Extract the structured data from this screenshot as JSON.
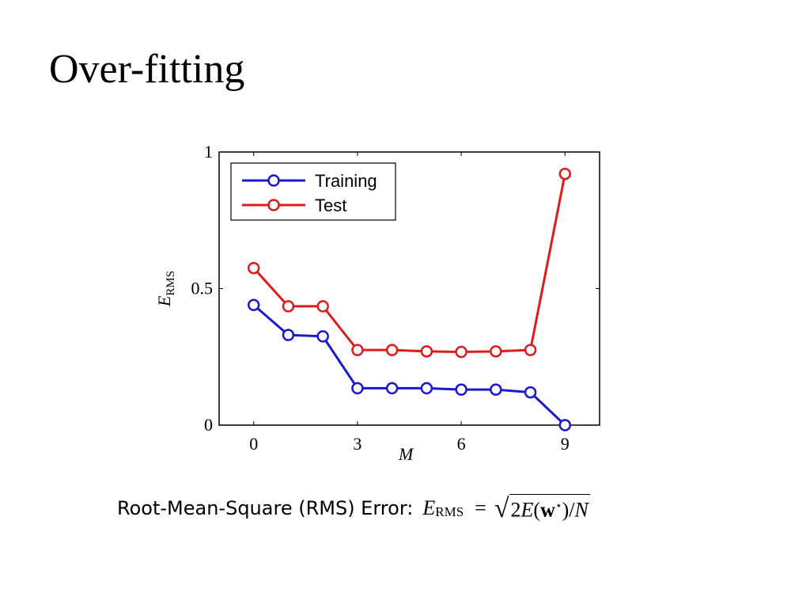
{
  "slide": {
    "title": "Over-fitting"
  },
  "caption": {
    "label": "Root-Mean-Square (RMS) Error:",
    "formula": {
      "lhs_symbol": "E",
      "lhs_subscript": "RMS",
      "equals": "=",
      "sqrt": "√",
      "radicand_prefix": "2",
      "radicand_E": "E",
      "radicand_open": "(",
      "radicand_w": "w",
      "radicand_star": "⋆",
      "radicand_close": ")/",
      "radicand_N": "N"
    }
  },
  "chart_data": {
    "type": "line",
    "title": "",
    "xlabel": "M",
    "ylabel_symbol": "E",
    "ylabel_subscript": "RMS",
    "xlim": [
      -1,
      10
    ],
    "ylim": [
      0,
      1
    ],
    "xticks": [
      0,
      3,
      6,
      9
    ],
    "yticks": [
      0,
      0.5,
      1
    ],
    "ytick_labels": [
      "0",
      "0.5",
      "1"
    ],
    "grid": false,
    "legend_position": "top-left",
    "series": [
      {
        "name": "Training",
        "color": "#1a1acc",
        "marker": "circle",
        "x": [
          0,
          1,
          2,
          3,
          4,
          5,
          6,
          7,
          8,
          9
        ],
        "y": [
          0.44,
          0.33,
          0.325,
          0.135,
          0.135,
          0.135,
          0.13,
          0.13,
          0.12,
          0.0
        ]
      },
      {
        "name": "Test",
        "color": "#dd1c1c",
        "marker": "circle",
        "x": [
          0,
          1,
          2,
          3,
          4,
          5,
          6,
          7,
          8,
          9
        ],
        "y": [
          0.575,
          0.435,
          0.435,
          0.275,
          0.275,
          0.27,
          0.268,
          0.27,
          0.275,
          0.92
        ]
      }
    ]
  }
}
